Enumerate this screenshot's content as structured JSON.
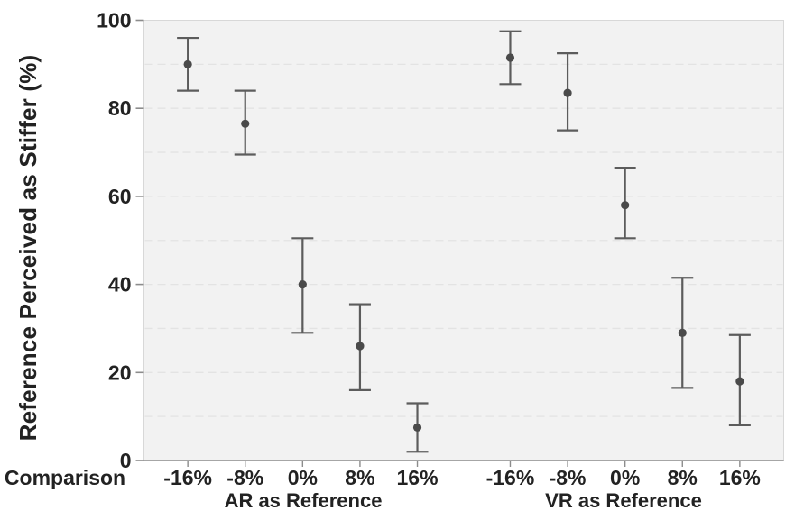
{
  "chart_data": {
    "type": "scatter",
    "title": "",
    "ylabel": "Reference Perceived as Stiffer (%)",
    "xlabel": "Comparison",
    "ylim": [
      0,
      100
    ],
    "yticks": [
      0,
      20,
      40,
      60,
      80,
      100
    ],
    "gridlines": [
      10,
      20,
      30,
      40,
      50,
      60,
      70,
      80,
      90
    ],
    "grid_style": "dashed",
    "legend": "none",
    "categories": [
      "-16%",
      "-8%",
      "0%",
      "8%",
      "16%"
    ],
    "groups": [
      {
        "label": "AR as Reference",
        "points": [
          {
            "x": "-16%",
            "mean": 90,
            "ci_low": 84,
            "ci_high": 96
          },
          {
            "x": "-8%",
            "mean": 76.5,
            "ci_low": 69.5,
            "ci_high": 84
          },
          {
            "x": "0%",
            "mean": 40,
            "ci_low": 29,
            "ci_high": 50.5
          },
          {
            "x": "8%",
            "mean": 26,
            "ci_low": 16,
            "ci_high": 35.5
          },
          {
            "x": "16%",
            "mean": 7.5,
            "ci_low": 2,
            "ci_high": 13
          }
        ]
      },
      {
        "label": "VR as Reference",
        "points": [
          {
            "x": "-16%",
            "mean": 91.5,
            "ci_low": 85.5,
            "ci_high": 97.5
          },
          {
            "x": "-8%",
            "mean": 83.5,
            "ci_low": 75,
            "ci_high": 92.5
          },
          {
            "x": "0%",
            "mean": 58,
            "ci_low": 50.5,
            "ci_high": 66.5
          },
          {
            "x": "8%",
            "mean": 29,
            "ci_low": 16.5,
            "ci_high": 41.5
          },
          {
            "x": "16%",
            "mean": 18,
            "ci_low": 8,
            "ci_high": 28.5
          }
        ]
      }
    ],
    "colors": {
      "point": "#4a4a4a",
      "error_bar": "#5c5c5c",
      "grid": "#e3e3e3",
      "plot_bg": "#f2f2f2",
      "border": "#d8d8d8",
      "axis": "#8c8c8c",
      "text": "#222222"
    }
  }
}
